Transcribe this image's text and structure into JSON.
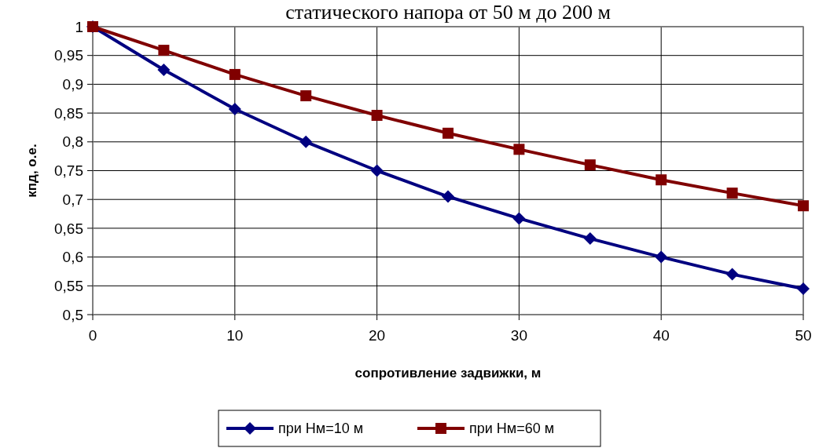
{
  "chart_data": {
    "type": "line",
    "title": "статического напора от 50 м до 200 м",
    "xlabel": "сопротивление задвижки, м",
    "ylabel": "кпд, о.е.",
    "x": [
      0,
      5,
      10,
      15,
      20,
      25,
      30,
      35,
      40,
      45,
      50
    ],
    "series": [
      {
        "name": "при Hм=10 м",
        "color": "#000080",
        "marker": "diamond",
        "values": [
          1,
          0.925,
          0.857,
          0.8,
          0.75,
          0.705,
          0.667,
          0.632,
          0.6,
          0.57,
          0.545
        ]
      },
      {
        "name": "при Hм=60 м",
        "color": "#800000",
        "marker": "square",
        "values": [
          1,
          0.959,
          0.917,
          0.88,
          0.846,
          0.815,
          0.787,
          0.76,
          0.734,
          0.711,
          0.689
        ]
      }
    ],
    "xlim": [
      0,
      50
    ],
    "xticks": [
      0,
      10,
      20,
      30,
      40,
      50
    ],
    "ylim": [
      0.5,
      1
    ],
    "yticks": [
      {
        "value": 0.5,
        "label": "0,5"
      },
      {
        "value": 0.55,
        "label": "0,55"
      },
      {
        "value": 0.6,
        "label": "0,6"
      },
      {
        "value": 0.65,
        "label": "0,65"
      },
      {
        "value": 0.7,
        "label": "0,7"
      },
      {
        "value": 0.75,
        "label": "0,75"
      },
      {
        "value": 0.8,
        "label": "0,8"
      },
      {
        "value": 0.85,
        "label": "0,85"
      },
      {
        "value": 0.9,
        "label": "0,9"
      },
      {
        "value": 0.95,
        "label": "0,95"
      },
      {
        "value": 1,
        "label": "1"
      }
    ],
    "grid": true,
    "legend": "bottom",
    "line_style": "solid"
  }
}
